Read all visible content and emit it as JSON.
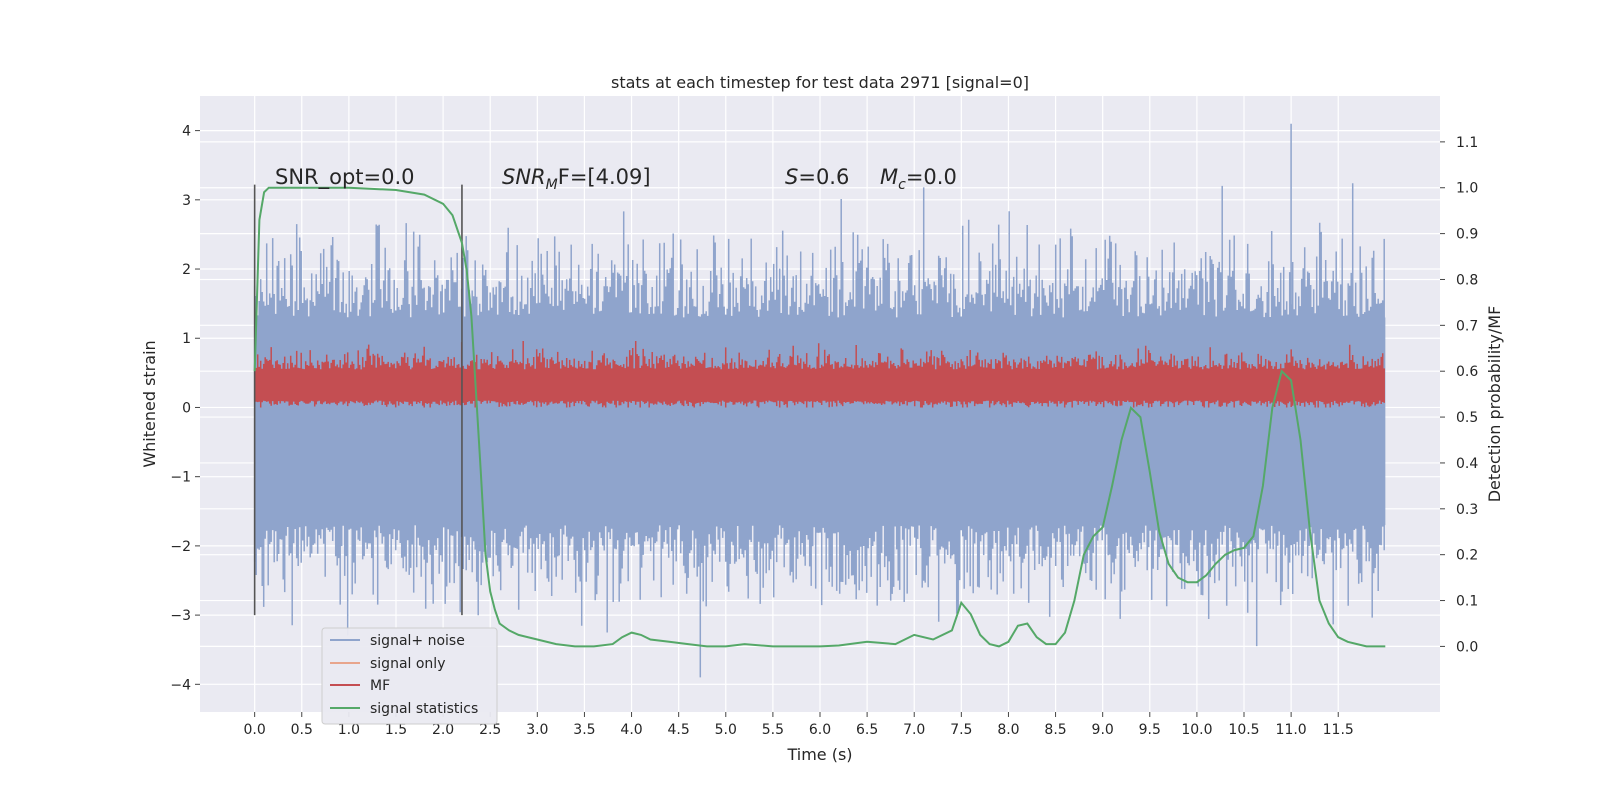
{
  "chart_data": {
    "type": "line",
    "title": "stats at each timestep for test data 2971 [signal=0]",
    "xlabel": "Time (s)",
    "ylabel": "Whitened strain",
    "y2label": "Detection probability/MF",
    "xlim": [
      -0.58,
      12.58
    ],
    "ylim": [
      -4.4,
      4.5
    ],
    "y2lim": [
      -0.143,
      1.2
    ],
    "x_ticks": [
      "0.0",
      "0.5",
      "1.0",
      "1.5",
      "2.0",
      "2.5",
      "3.0",
      "3.5",
      "4.0",
      "4.5",
      "5.0",
      "5.5",
      "6.0",
      "6.5",
      "7.0",
      "7.5",
      "8.0",
      "8.5",
      "9.0",
      "9.5",
      "10.0",
      "10.5",
      "11.0",
      "11.5"
    ],
    "y_ticks": [
      "4",
      "3",
      "2",
      "1",
      "0",
      "−1",
      "−2",
      "−3",
      "−4"
    ],
    "y2_ticks": [
      "1.1",
      "1.0",
      "0.9",
      "0.8",
      "0.7",
      "0.6",
      "0.5",
      "0.4",
      "0.3",
      "0.2",
      "0.1",
      "0.0"
    ],
    "grid": true,
    "legend_position": "lower-left",
    "annotations": {
      "snr_opt": "SNR_opt=0.0",
      "snr_mf_prefix": "SNR",
      "snr_mf_sub": "M",
      "snr_mf_suffix": "F=[4.09]",
      "s_var": "S",
      "s_val": "=0.6",
      "mc_var": "M",
      "mc_sub": "c",
      "mc_val": "=0.0"
    },
    "vertical_lines_x": [
      0.0,
      2.2
    ],
    "series": [
      {
        "name": "signal+ noise",
        "color": "#8fa4cc",
        "range": [
          -3.9,
          4.1
        ],
        "x_end": 12.0
      },
      {
        "name": "signal only",
        "color": "#e8a58c"
      },
      {
        "name": "MF",
        "color": "#c44e52",
        "range": [
          0.0,
          0.96
        ],
        "x_end": 12.0
      },
      {
        "name": "signal statistics",
        "color": "#55a868",
        "x": [
          0.0,
          0.05,
          0.1,
          0.15,
          0.2,
          0.3,
          0.5,
          1.0,
          1.5,
          1.8,
          2.0,
          2.1,
          2.2,
          2.25,
          2.3,
          2.35,
          2.4,
          2.45,
          2.5,
          2.55,
          2.6,
          2.7,
          2.8,
          3.0,
          3.2,
          3.4,
          3.6,
          3.8,
          3.9,
          4.0,
          4.1,
          4.2,
          4.4,
          4.6,
          4.8,
          5.0,
          5.2,
          5.5,
          6.0,
          6.2,
          6.5,
          6.8,
          7.0,
          7.2,
          7.4,
          7.5,
          7.6,
          7.7,
          7.8,
          7.9,
          8.0,
          8.1,
          8.2,
          8.3,
          8.4,
          8.5,
          8.6,
          8.7,
          8.8,
          8.9,
          9.0,
          9.1,
          9.2,
          9.3,
          9.4,
          9.5,
          9.6,
          9.7,
          9.8,
          9.9,
          10.0,
          10.1,
          10.2,
          10.3,
          10.4,
          10.5,
          10.6,
          10.7,
          10.8,
          10.9,
          11.0,
          11.1,
          11.2,
          11.3,
          11.4,
          11.5,
          11.6,
          11.7,
          11.8,
          12.0
        ],
        "y": [
          0.6,
          0.93,
          0.99,
          1.0,
          1.0,
          1.0,
          1.0,
          1.0,
          0.995,
          0.985,
          0.965,
          0.94,
          0.88,
          0.82,
          0.72,
          0.55,
          0.38,
          0.2,
          0.12,
          0.08,
          0.05,
          0.035,
          0.025,
          0.015,
          0.005,
          0.0,
          0.0,
          0.005,
          0.02,
          0.03,
          0.025,
          0.015,
          0.01,
          0.005,
          0.0,
          0.0,
          0.005,
          0.0,
          0.0,
          0.002,
          0.01,
          0.005,
          0.025,
          0.015,
          0.035,
          0.095,
          0.07,
          0.025,
          0.005,
          0.0,
          0.01,
          0.045,
          0.05,
          0.02,
          0.005,
          0.005,
          0.03,
          0.1,
          0.2,
          0.24,
          0.26,
          0.35,
          0.45,
          0.52,
          0.5,
          0.38,
          0.25,
          0.18,
          0.15,
          0.14,
          0.14,
          0.155,
          0.18,
          0.2,
          0.21,
          0.215,
          0.24,
          0.35,
          0.52,
          0.6,
          0.58,
          0.45,
          0.25,
          0.1,
          0.05,
          0.02,
          0.01,
          0.005,
          0.0,
          0.0
        ]
      }
    ]
  }
}
